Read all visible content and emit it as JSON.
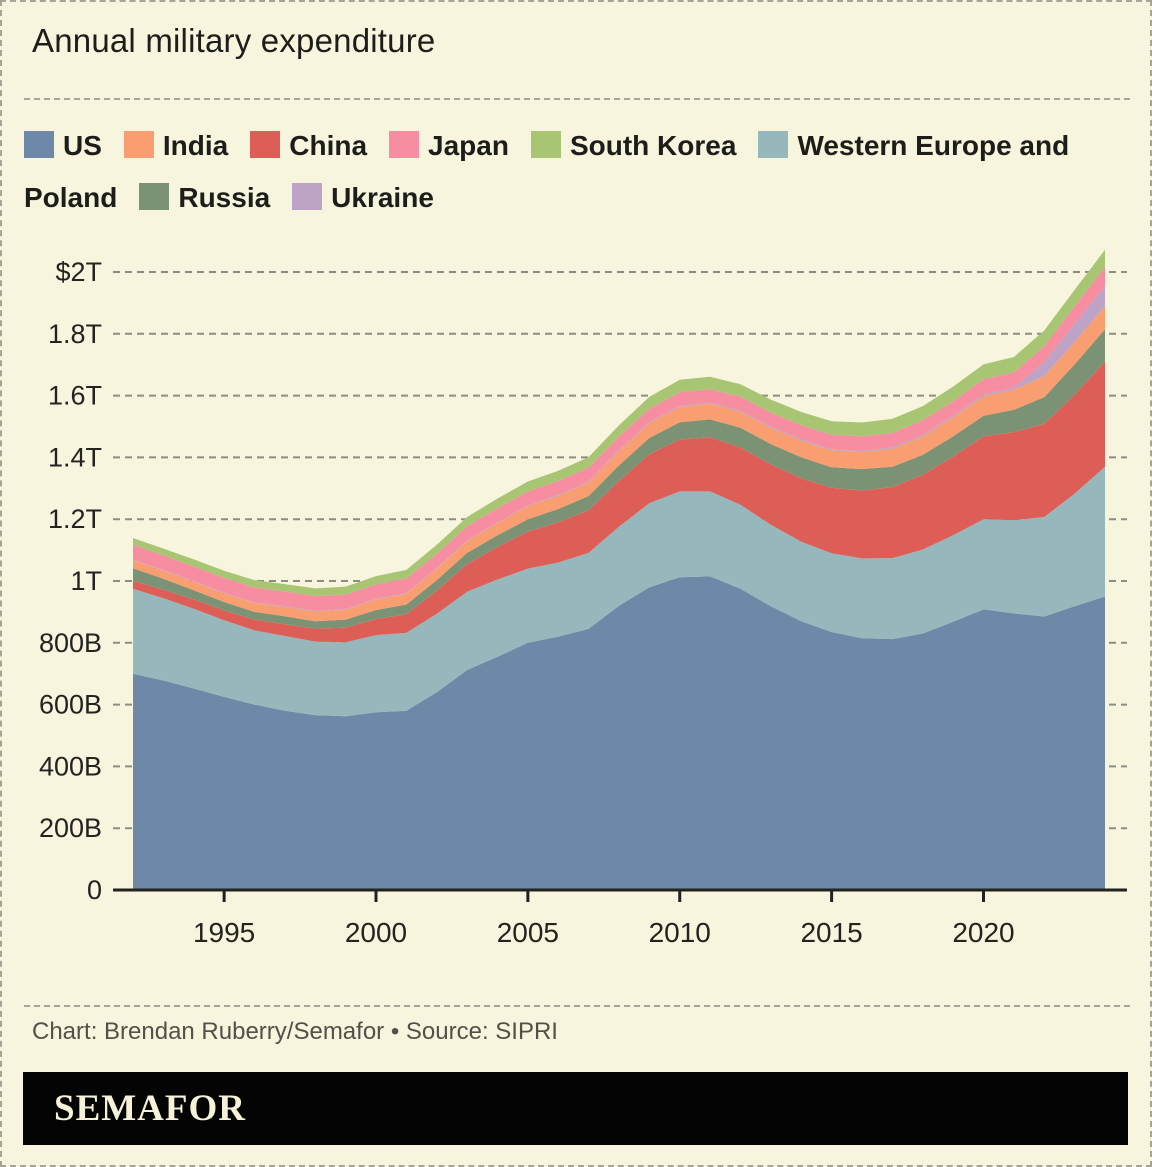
{
  "page": {
    "background": "#f8f5de",
    "border_color": "#a6a497",
    "text_color": "#1d1d19"
  },
  "header": {
    "title": "Annual military expenditure"
  },
  "legend": [
    {
      "label": "US",
      "color": "#6d89a7"
    },
    {
      "label": "India",
      "color": "#f99e70"
    },
    {
      "label": "China",
      "color": "#dd5e56"
    },
    {
      "label": "Japan",
      "color": "#f78da0"
    },
    {
      "label": "South Korea",
      "color": "#a8c573"
    },
    {
      "label": "Western Europe and Poland",
      "color": "#96b7bc"
    },
    {
      "label": "Russia",
      "color": "#7b9374"
    },
    {
      "label": "Ukraine",
      "color": "#bda4c6"
    }
  ],
  "chart_data": {
    "type": "area",
    "stacked": true,
    "title": "Annual military expenditure",
    "units": "billions of US dollars",
    "grid": "horizontal dashed",
    "legend_position": "top",
    "x": [
      1992,
      1993,
      1994,
      1995,
      1996,
      1997,
      1998,
      1999,
      2000,
      2001,
      2002,
      2003,
      2004,
      2005,
      2006,
      2007,
      2008,
      2009,
      2010,
      2011,
      2012,
      2013,
      2014,
      2015,
      2016,
      2017,
      2018,
      2019,
      2020,
      2021,
      2022,
      2023,
      2024
    ],
    "series": [
      {
        "name": "US",
        "color": "#6d89a7",
        "values": [
          700,
          678,
          652,
          625,
          600,
          580,
          566,
          562,
          575,
          580,
          640,
          712,
          755,
          800,
          820,
          845,
          920,
          980,
          1012,
          1015,
          975,
          918,
          870,
          835,
          815,
          812,
          830,
          868,
          908,
          895,
          885,
          918,
          950
        ]
      },
      {
        "name": "Western Europe and Poland",
        "color": "#96b7bc",
        "values": [
          275,
          266,
          258,
          248,
          240,
          242,
          238,
          240,
          250,
          252,
          254,
          253,
          250,
          240,
          240,
          246,
          256,
          272,
          278,
          275,
          272,
          264,
          257,
          255,
          258,
          262,
          272,
          280,
          292,
          302,
          322,
          365,
          420
        ]
      },
      {
        "name": "China",
        "color": "#dd5e56",
        "values": [
          26,
          28,
          30,
          32,
          35,
          38,
          42,
          47,
          52,
          60,
          75,
          90,
          105,
          120,
          130,
          138,
          148,
          158,
          168,
          175,
          185,
          195,
          205,
          212,
          220,
          230,
          242,
          255,
          268,
          285,
          302,
          320,
          340
        ]
      },
      {
        "name": "Russia",
        "color": "#7b9374",
        "values": [
          40,
          35,
          30,
          27,
          25,
          26,
          24,
          26,
          29,
          32,
          34,
          36,
          38,
          40,
          43,
          46,
          50,
          53,
          56,
          58,
          64,
          66,
          68,
          66,
          69,
          66,
          64,
          65,
          67,
          72,
          86,
          98,
          105
        ]
      },
      {
        "name": "India",
        "color": "#f99e70",
        "values": [
          26,
          26,
          27,
          28,
          29,
          30,
          31,
          32,
          34,
          35,
          36,
          38,
          40,
          42,
          43,
          44,
          46,
          48,
          50,
          51,
          52,
          53,
          54,
          55,
          56,
          58,
          60,
          62,
          63,
          65,
          68,
          72,
          75
        ]
      },
      {
        "name": "Ukraine",
        "color": "#bda4c6",
        "values": [
          2,
          2,
          2,
          2,
          2,
          2,
          2,
          2,
          2,
          2,
          2,
          2,
          2,
          2,
          3,
          3,
          3,
          3,
          3,
          3,
          3,
          4,
          4,
          4,
          4,
          5,
          5,
          5,
          6,
          6,
          46,
          60,
          64
        ]
      },
      {
        "name": "Japan",
        "color": "#f78da0",
        "values": [
          48,
          48,
          48,
          48,
          48,
          48,
          48,
          47,
          47,
          47,
          47,
          46,
          46,
          46,
          45,
          45,
          45,
          44,
          44,
          44,
          45,
          45,
          46,
          46,
          46,
          46,
          47,
          47,
          49,
          50,
          51,
          56,
          62
        ]
      },
      {
        "name": "South Korea",
        "color": "#a8c573",
        "values": [
          22,
          22,
          23,
          23,
          24,
          24,
          25,
          26,
          27,
          28,
          29,
          30,
          31,
          32,
          33,
          34,
          36,
          38,
          40,
          40,
          41,
          42,
          43,
          44,
          45,
          46,
          46,
          47,
          48,
          50,
          51,
          53,
          56
        ]
      }
    ],
    "yticks": [
      {
        "label": "$2T",
        "value": 2000
      },
      {
        "label": "1.8T",
        "value": 1800
      },
      {
        "label": "1.6T",
        "value": 1600
      },
      {
        "label": "1.4T",
        "value": 1400
      },
      {
        "label": "1.2T",
        "value": 1200
      },
      {
        "label": "1T",
        "value": 1000
      },
      {
        "label": "800B",
        "value": 800
      },
      {
        "label": "600B",
        "value": 600
      },
      {
        "label": "400B",
        "value": 400
      },
      {
        "label": "200B",
        "value": 200
      },
      {
        "label": "0",
        "value": 0
      }
    ],
    "xticks": [
      1995,
      2000,
      2005,
      2010,
      2015,
      2020
    ],
    "xlim": [
      1992,
      2024
    ],
    "ylim": [
      0,
      2100
    ],
    "gridline_color": "#8d8d84",
    "axis_color": "#22221e"
  },
  "footer": {
    "credit": "Chart: Brendan Ruberry/Semafor • Source: SIPRI",
    "logo": "SEMAFOR"
  }
}
